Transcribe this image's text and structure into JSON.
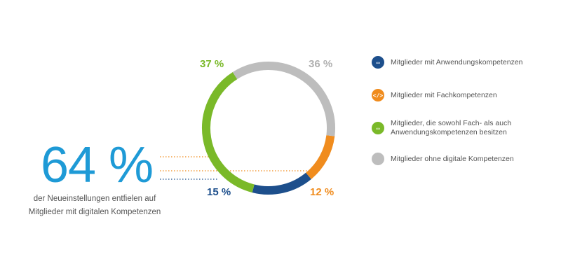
{
  "headline": {
    "value": "64 %",
    "caption_line1": "der Neueinstellungen entfielen auf",
    "caption_line2": "Mitglieder mit digitalen Kompetenzen"
  },
  "chart_data": {
    "type": "pie",
    "variant": "donut",
    "slices": [
      {
        "key": "blue",
        "value": 15,
        "label": "15 %",
        "color": "#1d4f8c"
      },
      {
        "key": "orange",
        "value": 12,
        "label": "12 %",
        "color": "#f08c1e"
      },
      {
        "key": "gray",
        "value": 36,
        "label": "36 %",
        "color": "#bdbdbd"
      },
      {
        "key": "green",
        "value": 37,
        "label": "37 %",
        "color": "#7ab929"
      }
    ],
    "legend": [
      {
        "label": "Mitglieder mit Anwendungskompetenzen",
        "color": "#1d4f8c",
        "icon": "monitor-icon",
        "glyph": "▭"
      },
      {
        "label": "Mitglieder mit Fachkompetenzen",
        "color": "#f08c1e",
        "icon": "code-icon",
        "glyph": "</>"
      },
      {
        "label": "Mitglieder, die sowohl Fach- als auch Anwendungskompetenzen besitzen",
        "color": "#7ab929",
        "icon": "code-monitor-icon",
        "glyph": "▭"
      },
      {
        "label": "Mitglieder ohne digitale Kompetenzen",
        "color": "#bdbdbd",
        "icon": "",
        "glyph": ""
      }
    ]
  }
}
